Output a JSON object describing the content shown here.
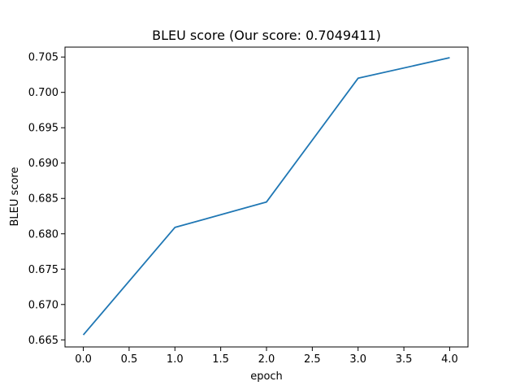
{
  "chart_data": {
    "type": "line",
    "title": "BLEU score (Our score: 0.7049411)",
    "xlabel": "epoch",
    "ylabel": "BLEU score",
    "x": [
      0,
      1,
      2,
      3,
      4
    ],
    "series": [
      {
        "values": [
          0.6657,
          0.6809,
          0.6845,
          0.702,
          0.7049
        ],
        "color": "#1f77b4"
      }
    ],
    "xlim": [
      -0.2,
      4.2
    ],
    "ylim": [
      0.664,
      0.7064
    ],
    "xticks": [
      0.0,
      0.5,
      1.0,
      1.5,
      2.0,
      2.5,
      3.0,
      3.5,
      4.0
    ],
    "xtick_labels": [
      "0.0",
      "0.5",
      "1.0",
      "1.5",
      "2.0",
      "2.5",
      "3.0",
      "3.5",
      "4.0"
    ],
    "yticks": [
      0.665,
      0.67,
      0.675,
      0.68,
      0.685,
      0.69,
      0.695,
      0.7,
      0.705
    ],
    "ytick_labels": [
      "0.665",
      "0.670",
      "0.675",
      "0.680",
      "0.685",
      "0.690",
      "0.695",
      "0.700",
      "0.705"
    ],
    "grid": false,
    "legend": "none"
  }
}
